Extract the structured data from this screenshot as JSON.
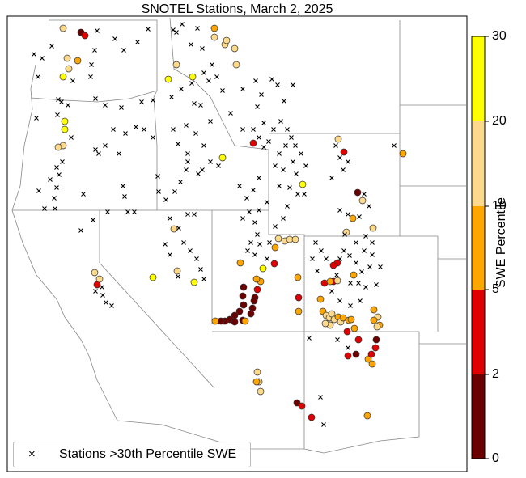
{
  "title": "SNOTEL Stations, March 2, 2025",
  "colorbar": {
    "label": "SWE Percentile",
    "ticks": [
      "0",
      "2",
      "5",
      "10",
      "20",
      "30"
    ],
    "colors": [
      "#6b0000",
      "#e00000",
      "#ffa500",
      "#fcd98b",
      "#ffff00"
    ]
  },
  "legend": {
    "marker": "×",
    "label": "Stations >30th Percentile SWE"
  },
  "marker_colors": {
    "0-2": "#6b0000",
    "2-5": "#e00000",
    "5-10": "#ffa500",
    "10-20": "#fcd98b",
    "20-30": "#ffff00",
    "above": "#000000"
  }
}
